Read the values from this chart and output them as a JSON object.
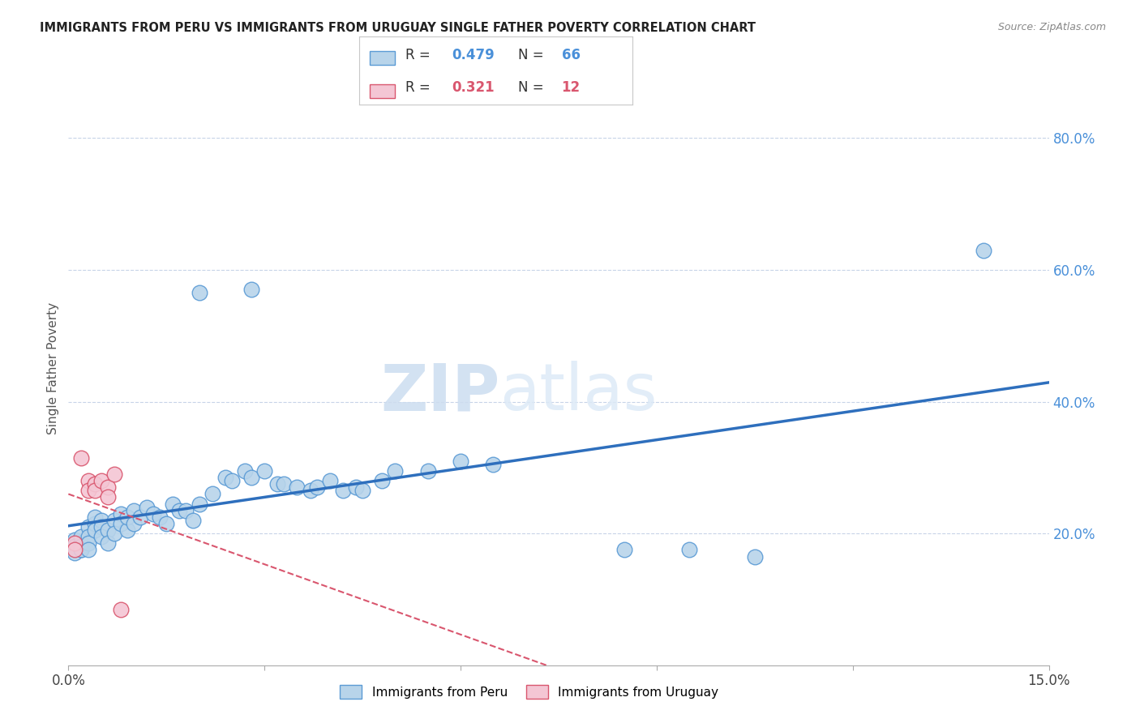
{
  "title": "IMMIGRANTS FROM PERU VS IMMIGRANTS FROM URUGUAY SINGLE FATHER POVERTY CORRELATION CHART",
  "source": "Source: ZipAtlas.com",
  "ylabel": "Single Father Poverty",
  "xlim": [
    0.0,
    0.15
  ],
  "ylim": [
    0.0,
    0.9
  ],
  "ytick_labels_right": [
    "80.0%",
    "60.0%",
    "40.0%",
    "20.0%"
  ],
  "ytick_vals_right": [
    0.8,
    0.6,
    0.4,
    0.2
  ],
  "peru_R": 0.479,
  "peru_N": 66,
  "uruguay_R": 0.321,
  "uruguay_N": 12,
  "peru_color": "#b8d4ea",
  "peru_edge": "#5b9bd5",
  "uruguay_color": "#f4c6d4",
  "uruguay_edge": "#d9566e",
  "peru_line_color": "#2e6fbd",
  "uruguay_line_color": "#d9566e",
  "grid_color": "#c8d4e8",
  "background_color": "#ffffff",
  "watermark_zip": "ZIP",
  "watermark_atlas": "atlas",
  "peru_x": [
    0.001,
    0.001,
    0.001,
    0.001,
    0.001,
    0.002,
    0.002,
    0.002,
    0.002,
    0.002,
    0.003,
    0.003,
    0.003,
    0.003,
    0.004,
    0.004,
    0.004,
    0.005,
    0.005,
    0.005,
    0.006,
    0.006,
    0.007,
    0.007,
    0.008,
    0.008,
    0.009,
    0.009,
    0.01,
    0.01,
    0.011,
    0.012,
    0.013,
    0.014,
    0.015,
    0.016,
    0.017,
    0.018,
    0.019,
    0.02,
    0.022,
    0.024,
    0.025,
    0.027,
    0.028,
    0.03,
    0.032,
    0.033,
    0.035,
    0.037,
    0.038,
    0.04,
    0.042,
    0.044,
    0.045,
    0.048,
    0.05,
    0.055,
    0.06,
    0.065,
    0.02,
    0.028,
    0.085,
    0.095,
    0.105,
    0.14
  ],
  "peru_y": [
    0.175,
    0.185,
    0.19,
    0.18,
    0.17,
    0.175,
    0.185,
    0.195,
    0.18,
    0.175,
    0.21,
    0.195,
    0.185,
    0.175,
    0.215,
    0.225,
    0.205,
    0.22,
    0.21,
    0.195,
    0.205,
    0.185,
    0.22,
    0.2,
    0.23,
    0.215,
    0.205,
    0.225,
    0.235,
    0.215,
    0.225,
    0.24,
    0.23,
    0.225,
    0.215,
    0.245,
    0.235,
    0.235,
    0.22,
    0.245,
    0.26,
    0.285,
    0.28,
    0.295,
    0.285,
    0.295,
    0.275,
    0.275,
    0.27,
    0.265,
    0.27,
    0.28,
    0.265,
    0.27,
    0.265,
    0.28,
    0.295,
    0.295,
    0.31,
    0.305,
    0.565,
    0.57,
    0.175,
    0.175,
    0.165,
    0.63
  ],
  "uruguay_x": [
    0.001,
    0.001,
    0.002,
    0.003,
    0.003,
    0.004,
    0.004,
    0.005,
    0.006,
    0.006,
    0.007,
    0.008
  ],
  "uruguay_y": [
    0.185,
    0.175,
    0.315,
    0.28,
    0.265,
    0.275,
    0.265,
    0.28,
    0.27,
    0.255,
    0.29,
    0.085
  ]
}
